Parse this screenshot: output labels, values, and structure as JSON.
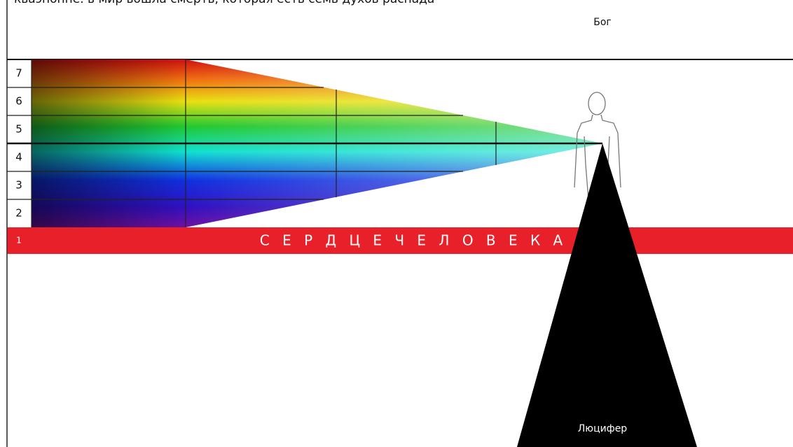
{
  "header": {
    "text": "кваэнонне. в мир вошла смерть, которая есть семь духов распада"
  },
  "top_label": "Бог",
  "rows": [
    "7",
    "6",
    "5",
    "4",
    "3",
    "2",
    "1"
  ],
  "band_label": "С Е Р Д Ц Е   Ч Е Л О В Е К А",
  "bottom_label": "Люцифер"
}
